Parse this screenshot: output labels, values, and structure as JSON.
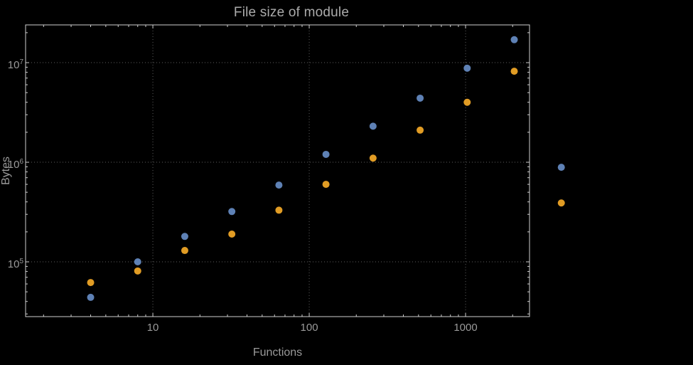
{
  "chart_data": {
    "type": "scatter",
    "title": "File size of module",
    "xlabel": "Functions",
    "ylabel": "Bytes",
    "x_scale": "log",
    "y_scale": "log",
    "grid": "dotted-major",
    "legend": "none",
    "categories": [
      4,
      8,
      16,
      32,
      64,
      128,
      256,
      512,
      1024,
      2048,
      4096
    ],
    "series": [
      {
        "name": "series-1",
        "color": "#5e81b5",
        "values": [
          44000,
          100000,
          180000,
          320000,
          590000,
          1200000,
          2300000,
          4400000,
          8800000,
          17000000,
          890000
        ]
      },
      {
        "name": "series-2",
        "color": "#e19c24",
        "values": [
          62000,
          81000,
          130000,
          190000,
          330000,
          600000,
          1100000,
          2100000,
          4000000,
          8200000,
          390000
        ]
      }
    ],
    "x_ticks": [
      {
        "value": 10,
        "label": "10"
      },
      {
        "value": 100,
        "label": "100"
      },
      {
        "value": 1000,
        "label": "1000"
      }
    ],
    "y_ticks": [
      {
        "value": 100000,
        "base": "10",
        "exp": "5"
      },
      {
        "value": 1000000,
        "base": "10",
        "exp": "6"
      },
      {
        "value": 10000000,
        "base": "10",
        "exp": "7"
      }
    ],
    "x_range_log": [
      0.186,
      3.409
    ],
    "y_range_log": [
      4.45,
      7.379
    ],
    "colors": {
      "background": "#000000",
      "text": "#9a9a9a",
      "text_bright": "#ababab",
      "frame": "#cfcfcf",
      "grid": "#5e5e5e"
    }
  }
}
